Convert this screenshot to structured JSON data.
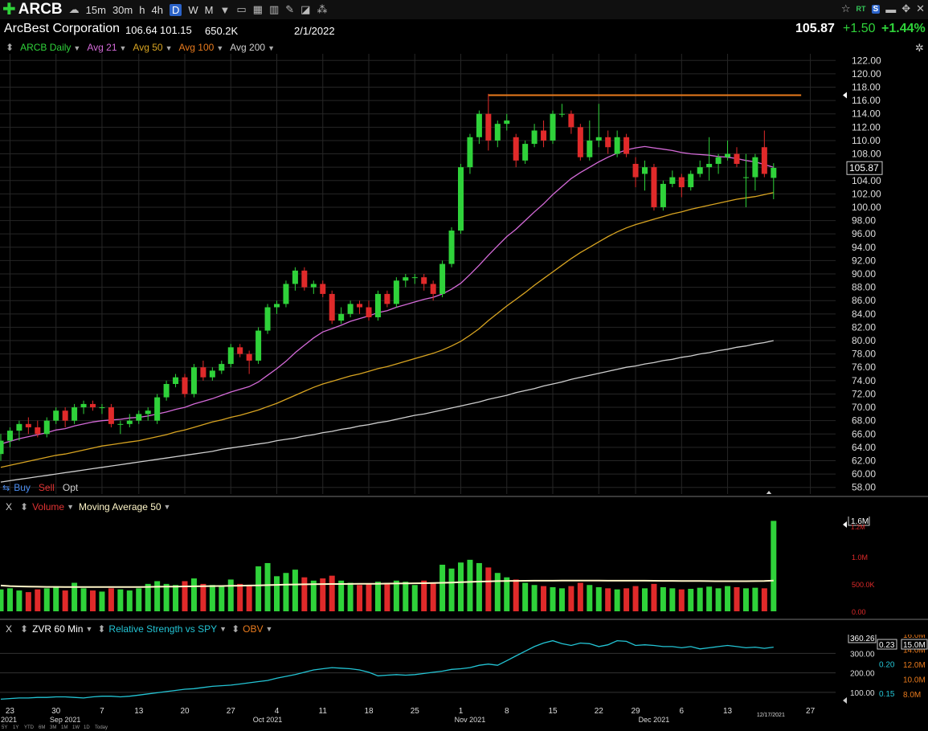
{
  "toolbar": {
    "symbol": "ARCB",
    "timeframes": [
      "15m",
      "30m",
      "h",
      "4h",
      "D",
      "W",
      "M"
    ],
    "active_timeframe": "D",
    "rt_label": "RT",
    "s_label": "S"
  },
  "quote": {
    "company": "ArcBest Corporation",
    "high": "106.64",
    "low": "101.15",
    "volume": "650.2K",
    "date": "2/1/2022",
    "last": "105.87",
    "change": "+1.50",
    "change_pct": "+1.44%"
  },
  "studies": [
    {
      "label": "ARCB Daily",
      "color": "#2fd23a"
    },
    {
      "label": "Avg 21",
      "color": "#d46ad8"
    },
    {
      "label": "Avg 50",
      "color": "#d8a421"
    },
    {
      "label": "Avg 100",
      "color": "#e87a1d"
    },
    {
      "label": "Avg 200",
      "color": "#cfcfcf"
    }
  ],
  "trade": {
    "buy": "Buy",
    "sell": "Sell",
    "opt": "Opt"
  },
  "volume_panel": {
    "close": "X",
    "study": "Volume",
    "ma": "Moving Average 50",
    "current_label": "1.6M",
    "current_subtick": "1.2M",
    "ticks": [
      {
        "v": 1000000,
        "label": "1.0M"
      },
      {
        "v": 500000,
        "label": "500.0K"
      },
      {
        "v": 0,
        "label": "0.00"
      }
    ],
    "ymax": 1700000
  },
  "rs_panel": {
    "close": "X",
    "study1": "ZVR 60 Min",
    "study2": "Relative Strength vs SPY",
    "study3": "OBV",
    "left_ticks": [
      {
        "v": 300,
        "label": "300.00"
      },
      {
        "v": 200,
        "label": "200.00"
      },
      {
        "v": 100,
        "label": "100.00"
      }
    ],
    "mid_ticks": [
      {
        "v": 0.2,
        "label": "0.20"
      },
      {
        "v": 0.15,
        "label": "0.15"
      }
    ],
    "right_ticks": [
      "16.0M",
      "14.0M",
      "12.0M",
      "10.0M",
      "8.0M"
    ],
    "rs_label": "360.26",
    "rs_mid_label": "0.23",
    "obv_label": "15.0M"
  },
  "x_axis": {
    "ticks": [
      {
        "i": 1,
        "label": "23"
      },
      {
        "i": 6,
        "label": "30"
      },
      {
        "i": 11,
        "label": "7"
      },
      {
        "i": 15,
        "label": "13"
      },
      {
        "i": 20,
        "label": "20"
      },
      {
        "i": 25,
        "label": "27"
      },
      {
        "i": 30,
        "label": "4"
      },
      {
        "i": 35,
        "label": "11"
      },
      {
        "i": 40,
        "label": "18"
      },
      {
        "i": 45,
        "label": "25"
      },
      {
        "i": 50,
        "label": "1"
      },
      {
        "i": 55,
        "label": "8"
      },
      {
        "i": 60,
        "label": "15"
      },
      {
        "i": 65,
        "label": "22"
      },
      {
        "i": 69,
        "label": "29"
      },
      {
        "i": 74,
        "label": "6"
      },
      {
        "i": 79,
        "label": "13"
      },
      {
        "i": 88,
        "label": "27"
      }
    ],
    "months": [
      {
        "i": 0,
        "label": "2021"
      },
      {
        "i": 7,
        "label": "Sep 2021"
      },
      {
        "i": 29,
        "label": "Oct 2021"
      },
      {
        "i": 51,
        "label": "Nov 2021"
      },
      {
        "i": 71,
        "label": "Dec 2021"
      }
    ],
    "current_date": "12/17/2021",
    "current_date_i": 83,
    "ranges": [
      "5Y",
      "1Y",
      "YTD",
      "6M",
      "3M",
      "1M",
      "1W",
      "1D",
      "Today"
    ]
  },
  "chart_data": {
    "type": "candlestick",
    "y_ticks": [
      58,
      60,
      62,
      64,
      66,
      68,
      70,
      72,
      74,
      76,
      78,
      80,
      82,
      84,
      86,
      88,
      90,
      92,
      94,
      96,
      98,
      100,
      102,
      104,
      106,
      108,
      110,
      112,
      114,
      116,
      118,
      120,
      122
    ],
    "ylim": [
      57,
      123
    ],
    "resistance_line": {
      "value": 116.8,
      "from_i": 53,
      "to_i": 87,
      "color": "#e87a1d"
    },
    "last_price_label": "105.87",
    "candles": [
      {
        "o": 63,
        "h": 66,
        "l": 62,
        "c": 65,
        "v": 400000
      },
      {
        "o": 65,
        "h": 67,
        "l": 64,
        "c": 66.5,
        "v": 420000
      },
      {
        "o": 66.5,
        "h": 68,
        "l": 65,
        "c": 67.5,
        "v": 380000
      },
      {
        "o": 67.5,
        "h": 68.5,
        "l": 66,
        "c": 67,
        "v": 350000
      },
      {
        "o": 67,
        "h": 68,
        "l": 65.5,
        "c": 66,
        "v": 400000
      },
      {
        "o": 66,
        "h": 68.5,
        "l": 65.5,
        "c": 68,
        "v": 420000
      },
      {
        "o": 68,
        "h": 70,
        "l": 67.5,
        "c": 69.5,
        "v": 450000
      },
      {
        "o": 69.5,
        "h": 70,
        "l": 67,
        "c": 68,
        "v": 380000
      },
      {
        "o": 68,
        "h": 70.5,
        "l": 67.5,
        "c": 70,
        "v": 520000
      },
      {
        "o": 70,
        "h": 71,
        "l": 69,
        "c": 70.5,
        "v": 420000
      },
      {
        "o": 70.5,
        "h": 71,
        "l": 69.5,
        "c": 70,
        "v": 380000
      },
      {
        "o": 70,
        "h": 70.5,
        "l": 69,
        "c": 70,
        "v": 360000
      },
      {
        "o": 70,
        "h": 70.5,
        "l": 67,
        "c": 67.5,
        "v": 420000
      },
      {
        "o": 67.5,
        "h": 68,
        "l": 66,
        "c": 67.5,
        "v": 400000
      },
      {
        "o": 67.5,
        "h": 69,
        "l": 67,
        "c": 68,
        "v": 380000
      },
      {
        "o": 68,
        "h": 69.5,
        "l": 67.5,
        "c": 69,
        "v": 420000
      },
      {
        "o": 69,
        "h": 70,
        "l": 68,
        "c": 69.5,
        "v": 500000
      },
      {
        "o": 68,
        "h": 72,
        "l": 67.5,
        "c": 71.5,
        "v": 550000
      },
      {
        "o": 71.5,
        "h": 74,
        "l": 71,
        "c": 73.5,
        "v": 500000
      },
      {
        "o": 73.5,
        "h": 75,
        "l": 73,
        "c": 74.5,
        "v": 480000
      },
      {
        "o": 74.5,
        "h": 75,
        "l": 71.5,
        "c": 72,
        "v": 550000
      },
      {
        "o": 72,
        "h": 76.5,
        "l": 71.5,
        "c": 76,
        "v": 600000
      },
      {
        "o": 76,
        "h": 77,
        "l": 74,
        "c": 74.5,
        "v": 500000
      },
      {
        "o": 74.5,
        "h": 76,
        "l": 74,
        "c": 75.5,
        "v": 480000
      },
      {
        "o": 75.5,
        "h": 77,
        "l": 75,
        "c": 76.5,
        "v": 460000
      },
      {
        "o": 76.5,
        "h": 79.5,
        "l": 76,
        "c": 79,
        "v": 580000
      },
      {
        "o": 79,
        "h": 79.5,
        "l": 77.5,
        "c": 78,
        "v": 500000
      },
      {
        "o": 78,
        "h": 78.5,
        "l": 75,
        "c": 77,
        "v": 480000
      },
      {
        "o": 77,
        "h": 82,
        "l": 76.5,
        "c": 81.5,
        "v": 820000
      },
      {
        "o": 81.5,
        "h": 85.5,
        "l": 81,
        "c": 85,
        "v": 880000
      },
      {
        "o": 85,
        "h": 86,
        "l": 84,
        "c": 85.5,
        "v": 640000
      },
      {
        "o": 85.5,
        "h": 89,
        "l": 85,
        "c": 88.5,
        "v": 700000
      },
      {
        "o": 88.5,
        "h": 91,
        "l": 87.5,
        "c": 90.5,
        "v": 760000
      },
      {
        "o": 90.5,
        "h": 91,
        "l": 87.5,
        "c": 88,
        "v": 620000
      },
      {
        "o": 88,
        "h": 89,
        "l": 87,
        "c": 88.5,
        "v": 560000
      },
      {
        "o": 88.5,
        "h": 89,
        "l": 86.5,
        "c": 87,
        "v": 600000
      },
      {
        "o": 87,
        "h": 87.5,
        "l": 82.5,
        "c": 83,
        "v": 650000
      },
      {
        "o": 83,
        "h": 85,
        "l": 82.5,
        "c": 84,
        "v": 560000
      },
      {
        "o": 84,
        "h": 86,
        "l": 83.5,
        "c": 85.5,
        "v": 520000
      },
      {
        "o": 85.5,
        "h": 86,
        "l": 84,
        "c": 85,
        "v": 480000
      },
      {
        "o": 85,
        "h": 86,
        "l": 83,
        "c": 83.5,
        "v": 500000
      },
      {
        "o": 83.5,
        "h": 87.5,
        "l": 83,
        "c": 87,
        "v": 540000
      },
      {
        "o": 87,
        "h": 87.5,
        "l": 85,
        "c": 85.5,
        "v": 520000
      },
      {
        "o": 85.5,
        "h": 89.5,
        "l": 85,
        "c": 89,
        "v": 560000
      },
      {
        "o": 89,
        "h": 90,
        "l": 88,
        "c": 89.5,
        "v": 540000
      },
      {
        "o": 89.5,
        "h": 90,
        "l": 88.5,
        "c": 89.5,
        "v": 480000
      },
      {
        "o": 89.5,
        "h": 90,
        "l": 87.5,
        "c": 88.5,
        "v": 560000
      },
      {
        "o": 88.5,
        "h": 89,
        "l": 86,
        "c": 87,
        "v": 520000
      },
      {
        "o": 87,
        "h": 92,
        "l": 86.5,
        "c": 91.5,
        "v": 850000
      },
      {
        "o": 91.5,
        "h": 97,
        "l": 91,
        "c": 96.5,
        "v": 780000
      },
      {
        "o": 96.5,
        "h": 106.5,
        "l": 96,
        "c": 106,
        "v": 890000
      },
      {
        "o": 106,
        "h": 111,
        "l": 105,
        "c": 110.5,
        "v": 940000
      },
      {
        "o": 110.5,
        "h": 114.5,
        "l": 109.5,
        "c": 114,
        "v": 880000
      },
      {
        "o": 114,
        "h": 117,
        "l": 108.5,
        "c": 110,
        "v": 800000
      },
      {
        "o": 110,
        "h": 113,
        "l": 109,
        "c": 112.5,
        "v": 700000
      },
      {
        "o": 112.5,
        "h": 114,
        "l": 111.5,
        "c": 113,
        "v": 620000
      },
      {
        "o": 110.5,
        "h": 111,
        "l": 106,
        "c": 107,
        "v": 580000
      },
      {
        "o": 107,
        "h": 110,
        "l": 106.5,
        "c": 109.5,
        "v": 520000
      },
      {
        "o": 109.5,
        "h": 112.5,
        "l": 109,
        "c": 111.5,
        "v": 480000
      },
      {
        "o": 111.5,
        "h": 113,
        "l": 109,
        "c": 110,
        "v": 460000
      },
      {
        "o": 110,
        "h": 114.5,
        "l": 109.5,
        "c": 114,
        "v": 440000
      },
      {
        "o": 114,
        "h": 115.5,
        "l": 113.5,
        "c": 114,
        "v": 420000
      },
      {
        "o": 114,
        "h": 114.5,
        "l": 111,
        "c": 112,
        "v": 460000
      },
      {
        "o": 112,
        "h": 112.5,
        "l": 107,
        "c": 107.5,
        "v": 520000
      },
      {
        "o": 107.5,
        "h": 113,
        "l": 107,
        "c": 110,
        "v": 480000
      },
      {
        "o": 110,
        "h": 115.5,
        "l": 109,
        "c": 110.5,
        "v": 440000
      },
      {
        "o": 110.5,
        "h": 111.5,
        "l": 108,
        "c": 109,
        "v": 420000
      },
      {
        "o": 108,
        "h": 111.5,
        "l": 107.5,
        "c": 110.5,
        "v": 400000
      },
      {
        "o": 110.5,
        "h": 111,
        "l": 107.5,
        "c": 108,
        "v": 420000
      },
      {
        "o": 106.5,
        "h": 107.5,
        "l": 103,
        "c": 104.5,
        "v": 460000
      },
      {
        "o": 105,
        "h": 107,
        "l": 102.5,
        "c": 106,
        "v": 420000
      },
      {
        "o": 106,
        "h": 106.5,
        "l": 99.5,
        "c": 100,
        "v": 500000
      },
      {
        "o": 100,
        "h": 104,
        "l": 99.5,
        "c": 103.5,
        "v": 440000
      },
      {
        "o": 103.5,
        "h": 105.5,
        "l": 103,
        "c": 104.5,
        "v": 420000
      },
      {
        "o": 104.5,
        "h": 105,
        "l": 101.5,
        "c": 103,
        "v": 400000
      },
      {
        "o": 103,
        "h": 105.5,
        "l": 102.5,
        "c": 105,
        "v": 410000
      },
      {
        "o": 105,
        "h": 107,
        "l": 104.5,
        "c": 106,
        "v": 430000
      },
      {
        "o": 106,
        "h": 110.5,
        "l": 104,
        "c": 106.5,
        "v": 450000
      },
      {
        "o": 106.5,
        "h": 108,
        "l": 105,
        "c": 107.5,
        "v": 420000
      },
      {
        "o": 107.5,
        "h": 110,
        "l": 107,
        "c": 108,
        "v": 460000
      },
      {
        "o": 108,
        "h": 109,
        "l": 106,
        "c": 106.5,
        "v": 440000
      },
      {
        "o": 104.5,
        "h": 108,
        "l": 100,
        "c": 104.5,
        "v": 420000
      },
      {
        "o": 104.5,
        "h": 108,
        "l": 102.5,
        "c": 107.5,
        "v": 430000
      },
      {
        "o": 109,
        "h": 111.5,
        "l": 104.5,
        "c": 105,
        "v": 420000
      },
      {
        "o": 104.4,
        "h": 106.6,
        "l": 101.2,
        "c": 105.9,
        "v": 1650000
      }
    ],
    "avg21": [
      64.5,
      64.9,
      65.3,
      65.6,
      65.9,
      66.2,
      66.6,
      66.8,
      67.2,
      67.5,
      67.8,
      68.0,
      68.1,
      68.2,
      68.4,
      68.5,
      68.7,
      69.0,
      69.3,
      69.7,
      70.0,
      70.5,
      70.9,
      71.3,
      71.8,
      72.3,
      72.7,
      73.1,
      73.8,
      74.8,
      75.8,
      76.9,
      78.2,
      79.3,
      80.4,
      81.3,
      81.8,
      82.3,
      82.9,
      83.3,
      83.7,
      84.2,
      84.5,
      85.0,
      85.4,
      85.8,
      86.2,
      86.5,
      87.0,
      87.7,
      88.6,
      89.9,
      91.3,
      92.8,
      94.2,
      95.6,
      96.7,
      98.0,
      99.3,
      100.5,
      101.9,
      103.1,
      104.3,
      105.2,
      106.0,
      106.8,
      107.5,
      108.1,
      108.6,
      108.9,
      109.1,
      108.9,
      108.7,
      108.5,
      108.2,
      108.0,
      107.9,
      107.8,
      107.6,
      107.5,
      107.3,
      107.0,
      106.8,
      106.4,
      106.0
    ],
    "avg50": [
      61.0,
      61.3,
      61.6,
      61.9,
      62.2,
      62.5,
      62.8,
      63.0,
      63.3,
      63.6,
      63.9,
      64.2,
      64.4,
      64.6,
      64.8,
      65.0,
      65.3,
      65.6,
      65.9,
      66.3,
      66.6,
      67.0,
      67.4,
      67.8,
      68.1,
      68.5,
      68.8,
      69.2,
      69.6,
      70.1,
      70.6,
      71.2,
      71.8,
      72.4,
      73.0,
      73.5,
      73.9,
      74.3,
      74.7,
      75.0,
      75.4,
      75.8,
      76.1,
      76.5,
      76.9,
      77.3,
      77.7,
      78.1,
      78.6,
      79.2,
      79.9,
      80.8,
      81.8,
      83.0,
      84.1,
      85.2,
      86.2,
      87.2,
      88.3,
      89.3,
      90.3,
      91.3,
      92.3,
      93.2,
      94.0,
      94.8,
      95.6,
      96.3,
      96.9,
      97.4,
      97.8,
      98.2,
      98.6,
      99.0,
      99.3,
      99.7,
      100.0,
      100.3,
      100.6,
      100.9,
      101.2,
      101.4,
      101.6,
      101.9,
      102.2
    ],
    "avg200": [
      58.8,
      59.0,
      59.2,
      59.4,
      59.6,
      59.8,
      60.0,
      60.2,
      60.4,
      60.6,
      60.8,
      61.0,
      61.2,
      61.4,
      61.6,
      61.8,
      62.0,
      62.2,
      62.4,
      62.6,
      62.8,
      63.0,
      63.2,
      63.4,
      63.7,
      63.9,
      64.1,
      64.3,
      64.5,
      64.7,
      65.0,
      65.2,
      65.4,
      65.7,
      65.9,
      66.2,
      66.4,
      66.7,
      66.9,
      67.2,
      67.4,
      67.7,
      67.9,
      68.2,
      68.5,
      68.8,
      69.0,
      69.3,
      69.6,
      69.9,
      70.2,
      70.5,
      70.8,
      71.2,
      71.5,
      71.8,
      72.2,
      72.5,
      72.8,
      73.2,
      73.5,
      73.8,
      74.2,
      74.5,
      74.8,
      75.1,
      75.4,
      75.7,
      76.0,
      76.2,
      76.5,
      76.7,
      77.0,
      77.2,
      77.5,
      77.7,
      78.0,
      78.2,
      78.5,
      78.7,
      79.0,
      79.2,
      79.5,
      79.7,
      80.0
    ],
    "vol_ma50": [
      470000,
      460000,
      455000,
      450000,
      448000,
      446000,
      445000,
      444000,
      444000,
      443000,
      443000,
      442000,
      442000,
      442000,
      443000,
      444000,
      446000,
      448000,
      450000,
      452000,
      454000,
      456000,
      458000,
      460000,
      462000,
      465000,
      468000,
      470000,
      474000,
      478000,
      482000,
      486000,
      490000,
      493000,
      495000,
      497000,
      498000,
      499000,
      500000,
      501000,
      502000,
      503000,
      505000,
      507000,
      509000,
      511000,
      513000,
      516000,
      520000,
      525000,
      530000,
      536000,
      542000,
      547000,
      551000,
      554000,
      556000,
      557000,
      558000,
      559000,
      559000,
      560000,
      560000,
      560000,
      560000,
      560000,
      559000,
      558000,
      558000,
      558000,
      558000,
      557000,
      556000,
      555000,
      554000,
      553000,
      552000,
      551000,
      550000,
      550000,
      550000,
      550000,
      551000,
      552000,
      560000
    ],
    "rs_line": [
      0.14,
      0.141,
      0.142,
      0.142,
      0.143,
      0.143,
      0.144,
      0.144,
      0.143,
      0.142,
      0.144,
      0.145,
      0.145,
      0.144,
      0.145,
      0.147,
      0.149,
      0.151,
      0.153,
      0.155,
      0.157,
      0.158,
      0.16,
      0.162,
      0.163,
      0.164,
      0.166,
      0.168,
      0.17,
      0.172,
      0.176,
      0.179,
      0.182,
      0.186,
      0.19,
      0.192,
      0.194,
      0.193,
      0.192,
      0.19,
      0.186,
      0.18,
      0.181,
      0.182,
      0.181,
      0.182,
      0.184,
      0.186,
      0.188,
      0.191,
      0.192,
      0.194,
      0.198,
      0.2,
      0.198,
      0.206,
      0.214,
      0.222,
      0.23,
      0.236,
      0.24,
      0.235,
      0.232,
      0.236,
      0.235,
      0.23,
      0.233,
      0.24,
      0.239,
      0.232,
      0.233,
      0.232,
      0.23,
      0.23,
      0.228,
      0.23,
      0.226,
      0.228,
      0.23,
      0.232,
      0.23,
      0.228,
      0.229,
      0.227,
      0.229
    ]
  }
}
